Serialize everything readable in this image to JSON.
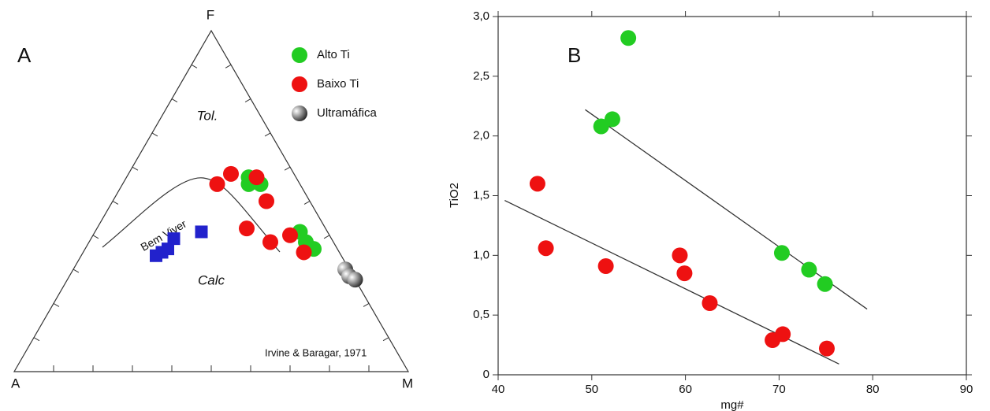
{
  "chart_data": [
    {
      "type": "ternary",
      "panel_label": "A",
      "vertex_labels": [
        "A",
        "F",
        "M"
      ],
      "ticks": [
        10,
        20,
        30,
        40,
        50,
        60,
        70,
        80,
        90
      ],
      "annotations": [
        "Tol.",
        "Calc",
        "Irvine & Baragar, 1971"
      ],
      "legend": "top-right",
      "series": [
        {
          "name": "Alto Ti",
          "color": "#22cc22",
          "marker": "circle",
          "in_legend": true,
          "A": [
            12,
            13,
            10,
            7,
            7,
            6
          ],
          "F": [
            57,
            55,
            55,
            41,
            38,
            36
          ],
          "M": [
            31,
            32,
            35,
            52,
            55,
            58
          ]
        },
        {
          "name": "Baixo Ti",
          "color": "#ee1111",
          "marker": "circle",
          "in_legend": true,
          "A": [
            21,
            16,
            10,
            11,
            20,
            16,
            10,
            9
          ],
          "F": [
            55,
            58,
            57,
            50,
            42,
            38,
            40,
            35
          ],
          "M": [
            24,
            26,
            33,
            39,
            38,
            46,
            50,
            56
          ]
        },
        {
          "name": "Ultramáfica",
          "color": "#222222",
          "marker": "gradient-circle",
          "in_legend": true,
          "A": [
            1,
            1,
            0
          ],
          "F": [
            30,
            28,
            27
          ],
          "M": [
            69,
            71,
            73
          ]
        },
        {
          "name": "Bem Viver",
          "color": "#2222cc",
          "marker": "square",
          "in_legend": false,
          "A": [
            47,
            45,
            43,
            40,
            32
          ],
          "F": [
            34,
            35,
            36,
            39,
            41
          ],
          "M": [
            19,
            20,
            21,
            21,
            27
          ]
        }
      ]
    },
    {
      "type": "scatter",
      "panel_label": "B",
      "x_label": "mg#",
      "y_label": "TiO2",
      "xlim": [
        40,
        90
      ],
      "xticks": [
        40,
        50,
        60,
        70,
        80,
        90
      ],
      "ylim": [
        0,
        3.0
      ],
      "yticks": [
        0,
        {
          "value": 0.5,
          "label": "0,5"
        },
        {
          "value": 1.0,
          "label": "1,0"
        },
        {
          "value": 1.5,
          "label": "1,5"
        },
        {
          "value": 2.0,
          "label": "2,0"
        },
        {
          "value": 2.5,
          "label": "2,5"
        },
        {
          "value": 3.0,
          "label": "3,0"
        }
      ],
      "series": [
        {
          "name": "Alto Ti",
          "color": "#22cc22",
          "x": [
            53.9,
            51.0,
            52.2,
            70.3,
            73.2,
            74.9
          ],
          "values": [
            2.82,
            2.08,
            2.14,
            1.02,
            0.88,
            0.76
          ]
        },
        {
          "name": "Baixo Ti",
          "color": "#ee1111",
          "x": [
            44.2,
            45.1,
            51.5,
            59.4,
            59.9,
            62.6,
            69.3,
            70.4,
            75.1
          ],
          "values": [
            1.6,
            1.06,
            0.91,
            1.0,
            0.85,
            0.6,
            0.29,
            0.34,
            0.22
          ]
        }
      ],
      "trend_lines": [
        {
          "color": "#333333",
          "x": [
            49.3,
            79.4
          ],
          "values": [
            2.22,
            0.55
          ]
        },
        {
          "color": "#333333",
          "x": [
            40.7,
            76.4
          ],
          "values": [
            1.46,
            0.09
          ]
        }
      ]
    }
  ]
}
